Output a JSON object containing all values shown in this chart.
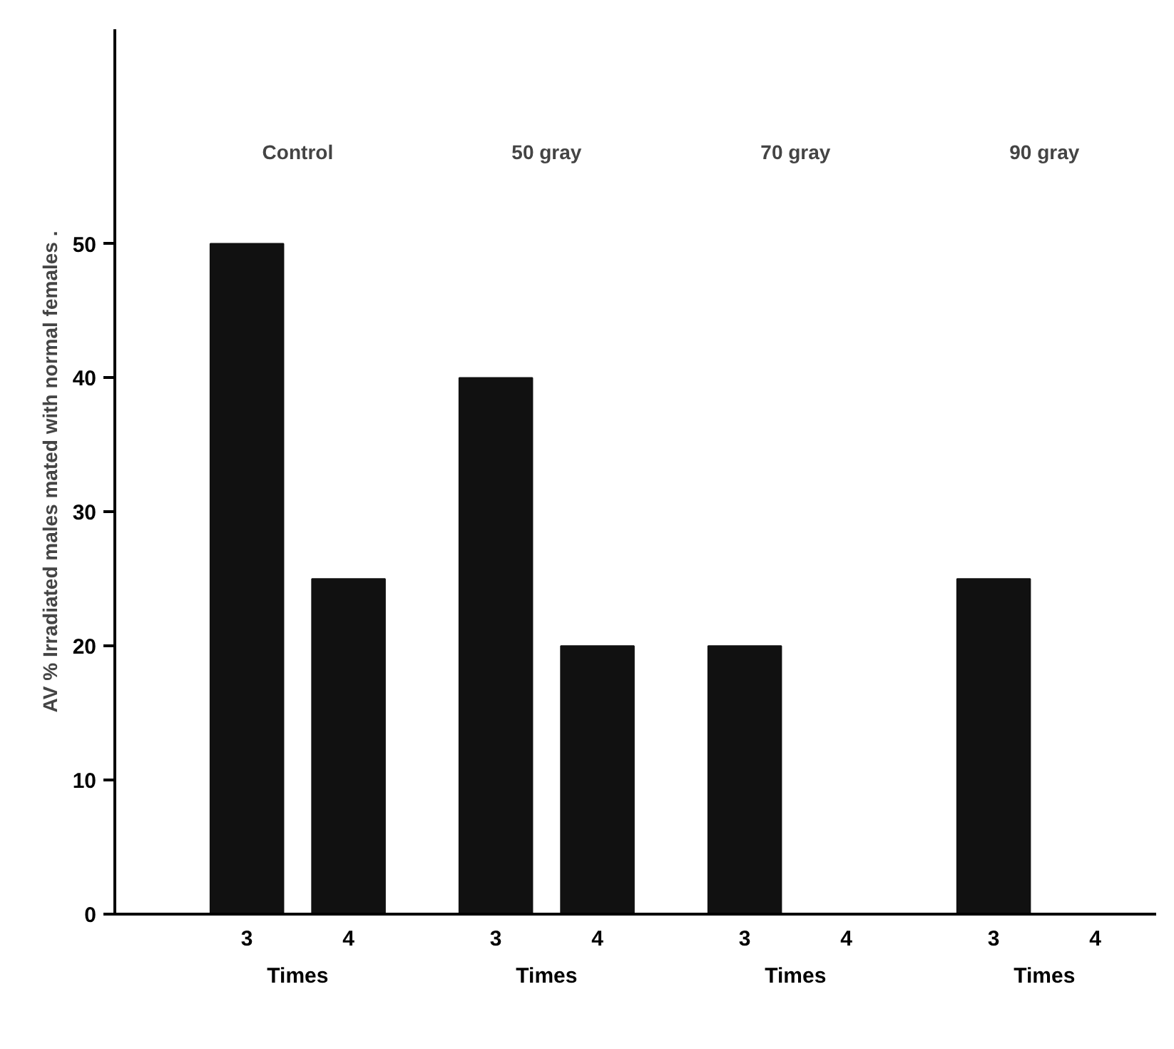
{
  "chart_data": {
    "type": "bar",
    "ylabel": "AV % Irradiated males mated with normal females .",
    "categories": [
      "3",
      "4",
      "3",
      "4",
      "3",
      "4",
      "3",
      "4"
    ],
    "values": [
      50,
      25,
      40,
      20,
      20,
      0,
      25,
      0
    ],
    "color": "#111111",
    "ylim": [
      0,
      66
    ],
    "yticks": [
      0,
      10,
      20,
      30,
      40,
      50
    ],
    "grid": false,
    "annotations": [
      "Control",
      "50 gray",
      "70 gray",
      "90 gray",
      "Times",
      "Times",
      "Times",
      "Times"
    ]
  }
}
